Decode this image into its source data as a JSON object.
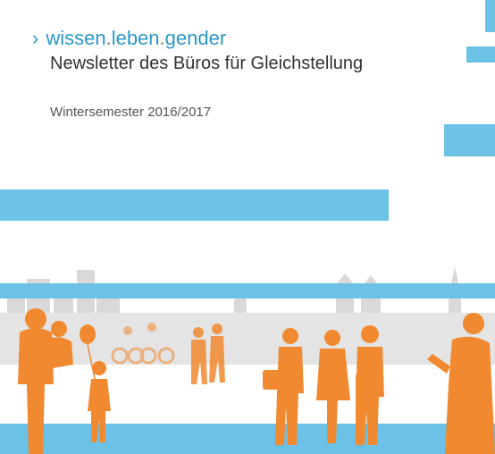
{
  "header": {
    "series_part1": "wissen",
    "series_sep1": ".",
    "series_part2": "leben",
    "series_sep2": ".",
    "series_part3": "gender",
    "title": "Newsletter des Büros für Gleichstellung",
    "semester": "Wintersemester 2016/2017"
  },
  "colors": {
    "accent_blue": "#6cc2e6",
    "text_blue": "#2b97c8",
    "figure_orange": "#f0892f",
    "skyline_gray": "#d4d4d4"
  },
  "icons": {
    "chevron": "›"
  }
}
